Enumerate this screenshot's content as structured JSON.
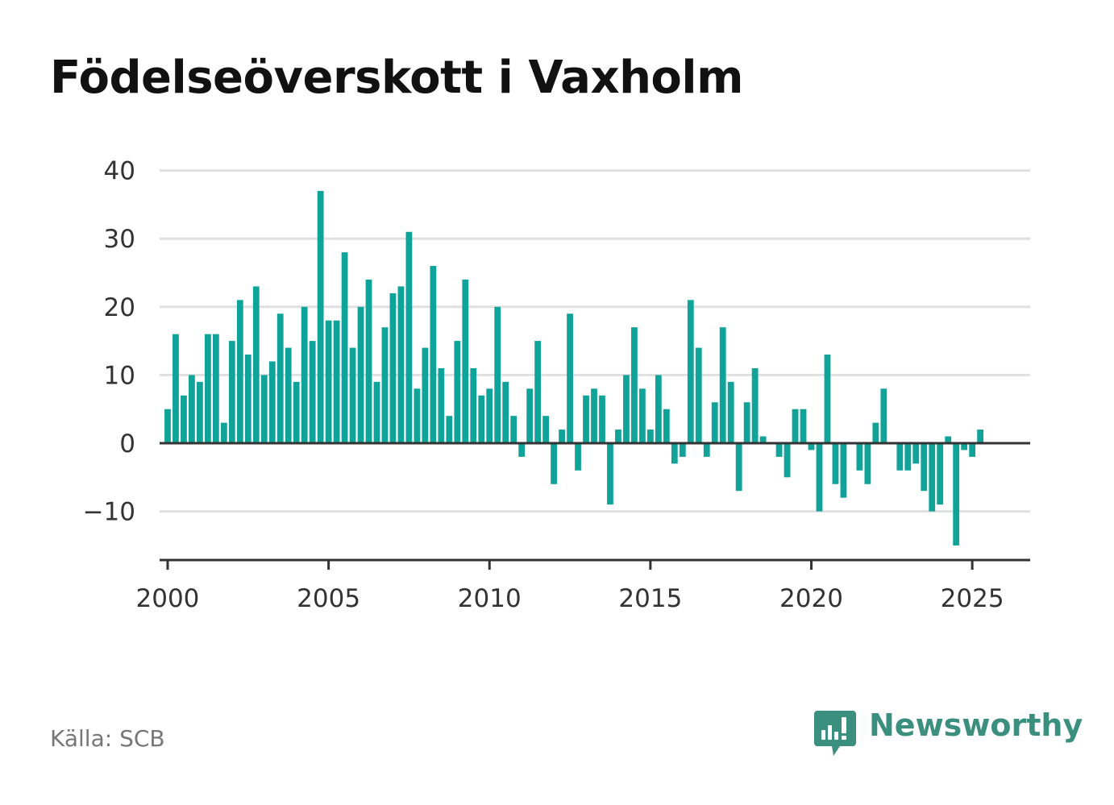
{
  "title": "Födelseöverskott i Vaxholm",
  "source": "Källa: SCB",
  "brand": {
    "name": "Newsworthy",
    "icon": "newsworthy-logo-icon"
  },
  "colors": {
    "bar": "#0fa39a",
    "grid": "#e0e0e0",
    "axis": "#333333",
    "brand": "#3b8f7e"
  },
  "chart_data": {
    "type": "bar",
    "title": "Födelseöverskott i Vaxholm",
    "xlabel": "",
    "ylabel": "",
    "ylim": [
      -17,
      40
    ],
    "xlim": [
      1999.75,
      2026.8
    ],
    "grid": true,
    "y_ticks": [
      "40",
      "30",
      "20",
      "10",
      "0",
      "−10"
    ],
    "x_ticks": [
      "2000",
      "2005",
      "2010",
      "2015",
      "2020",
      "2025"
    ],
    "series": [
      {
        "x": [
          "2000-Q1",
          "2000-Q2",
          "2000-Q3",
          "2000-Q4",
          "2001-Q1",
          "2001-Q2",
          "2001-Q3",
          "2001-Q4",
          "2002-Q1",
          "2002-Q2",
          "2002-Q3",
          "2002-Q4",
          "2003-Q1",
          "2003-Q2",
          "2003-Q3",
          "2003-Q4",
          "2004-Q1",
          "2004-Q2",
          "2004-Q3",
          "2004-Q4",
          "2005-Q1",
          "2005-Q2",
          "2005-Q3",
          "2005-Q4",
          "2006-Q1",
          "2006-Q2",
          "2006-Q3",
          "2006-Q4",
          "2007-Q1",
          "2007-Q2",
          "2007-Q3",
          "2007-Q4",
          "2008-Q1",
          "2008-Q2",
          "2008-Q3",
          "2008-Q4",
          "2009-Q1",
          "2009-Q2",
          "2009-Q3",
          "2009-Q4",
          "2010-Q1",
          "2010-Q2",
          "2010-Q3",
          "2010-Q4",
          "2011-Q1",
          "2011-Q2",
          "2011-Q3",
          "2011-Q4",
          "2012-Q1",
          "2012-Q2",
          "2012-Q3",
          "2012-Q4",
          "2013-Q1",
          "2013-Q2",
          "2013-Q3",
          "2013-Q4",
          "2014-Q1",
          "2014-Q2",
          "2014-Q3",
          "2014-Q4",
          "2015-Q1",
          "2015-Q2",
          "2015-Q3",
          "2015-Q4",
          "2016-Q1",
          "2016-Q2",
          "2016-Q3",
          "2016-Q4",
          "2017-Q1",
          "2017-Q2",
          "2017-Q3",
          "2017-Q4",
          "2018-Q1",
          "2018-Q2",
          "2018-Q3",
          "2018-Q4",
          "2019-Q1",
          "2019-Q2",
          "2019-Q3",
          "2019-Q4",
          "2020-Q1",
          "2020-Q2",
          "2020-Q3",
          "2020-Q4",
          "2021-Q1",
          "2021-Q2",
          "2021-Q3",
          "2021-Q4",
          "2022-Q1",
          "2022-Q2",
          "2022-Q3",
          "2022-Q4",
          "2023-Q1",
          "2023-Q2",
          "2023-Q3",
          "2023-Q4",
          "2024-Q1",
          "2024-Q2",
          "2024-Q3",
          "2024-Q4",
          "2025-Q1",
          "2025-Q2"
        ],
        "values": [
          5,
          16,
          7,
          10,
          9,
          16,
          16,
          3,
          15,
          21,
          13,
          23,
          10,
          12,
          19,
          14,
          9,
          20,
          15,
          37,
          18,
          18,
          28,
          14,
          20,
          24,
          9,
          17,
          22,
          23,
          31,
          8,
          14,
          26,
          11,
          4,
          15,
          24,
          11,
          7,
          8,
          20,
          9,
          4,
          -2,
          8,
          15,
          4,
          -6,
          2,
          19,
          -4,
          7,
          8,
          7,
          -9,
          2,
          10,
          17,
          8,
          2,
          10,
          5,
          -3,
          -2,
          21,
          14,
          -2,
          6,
          17,
          9,
          -7,
          6,
          11,
          1,
          0,
          -2,
          -5,
          5,
          5,
          -1,
          -10,
          13,
          -6,
          -8,
          0,
          -4,
          -6,
          3,
          8,
          0,
          -4,
          -4,
          -3,
          -7,
          -10,
          -9,
          1,
          -15,
          -1,
          -2,
          2
        ]
      }
    ]
  }
}
